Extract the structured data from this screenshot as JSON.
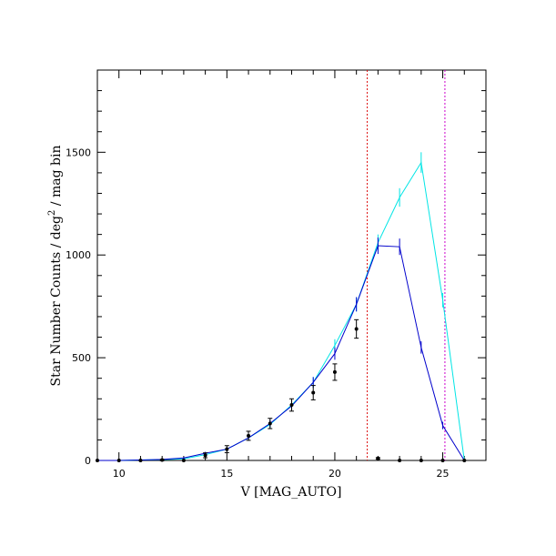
{
  "chart_data": {
    "type": "line",
    "xlabel": "V [MAG_AUTO]",
    "ylabel_main": "Star Number Counts / deg",
    "ylabel_sup": "2",
    "ylabel_tail": " / mag bin",
    "xlim": [
      9,
      27
    ],
    "ylim": [
      0,
      1900
    ],
    "x_ticks": [
      10,
      15,
      20,
      25
    ],
    "y_ticks": [
      0,
      500,
      1000,
      1500
    ],
    "vlines": [
      {
        "x": 21.5,
        "color": "#dd1111"
      },
      {
        "x": 25.1,
        "color": "#cc00cc"
      }
    ],
    "series": [
      {
        "color": "#00e5e5",
        "x": [
          9,
          10,
          11,
          12,
          13,
          14,
          15,
          16,
          17,
          18,
          19,
          20,
          21,
          22,
          23,
          24,
          25,
          26
        ],
        "y": [
          0,
          0,
          2,
          4,
          8,
          28,
          55,
          110,
          175,
          270,
          380,
          560,
          760,
          1060,
          1280,
          1450,
          780,
          0
        ],
        "err": [
          0,
          0,
          2,
          3,
          4,
          7,
          10,
          14,
          18,
          22,
          26,
          30,
          35,
          40,
          45,
          50,
          35,
          0
        ]
      },
      {
        "color": "#0000cc",
        "x": [
          9,
          10,
          11,
          12,
          13,
          14,
          15,
          16,
          17,
          18,
          19,
          20,
          21,
          22,
          23,
          24,
          25,
          26
        ],
        "y": [
          0,
          0,
          2,
          5,
          12,
          35,
          55,
          110,
          180,
          265,
          380,
          520,
          760,
          1045,
          1040,
          550,
          170,
          0
        ],
        "err": [
          0,
          0,
          2,
          3,
          4,
          7,
          10,
          14,
          18,
          22,
          26,
          30,
          35,
          40,
          40,
          30,
          18,
          0
        ]
      }
    ],
    "points": {
      "color": "#000000",
      "x": [
        9,
        10,
        11,
        12,
        13,
        14,
        15,
        16,
        17,
        18,
        19,
        20,
        21,
        22,
        23,
        24,
        25,
        26
      ],
      "y": [
        0,
        0,
        0,
        2,
        0,
        25,
        55,
        120,
        180,
        270,
        330,
        430,
        640,
        10,
        0,
        0,
        0,
        0
      ],
      "err": [
        0,
        0,
        0,
        3,
        0,
        12,
        17,
        22,
        25,
        30,
        35,
        40,
        45,
        4,
        0,
        0,
        0,
        0
      ]
    }
  }
}
